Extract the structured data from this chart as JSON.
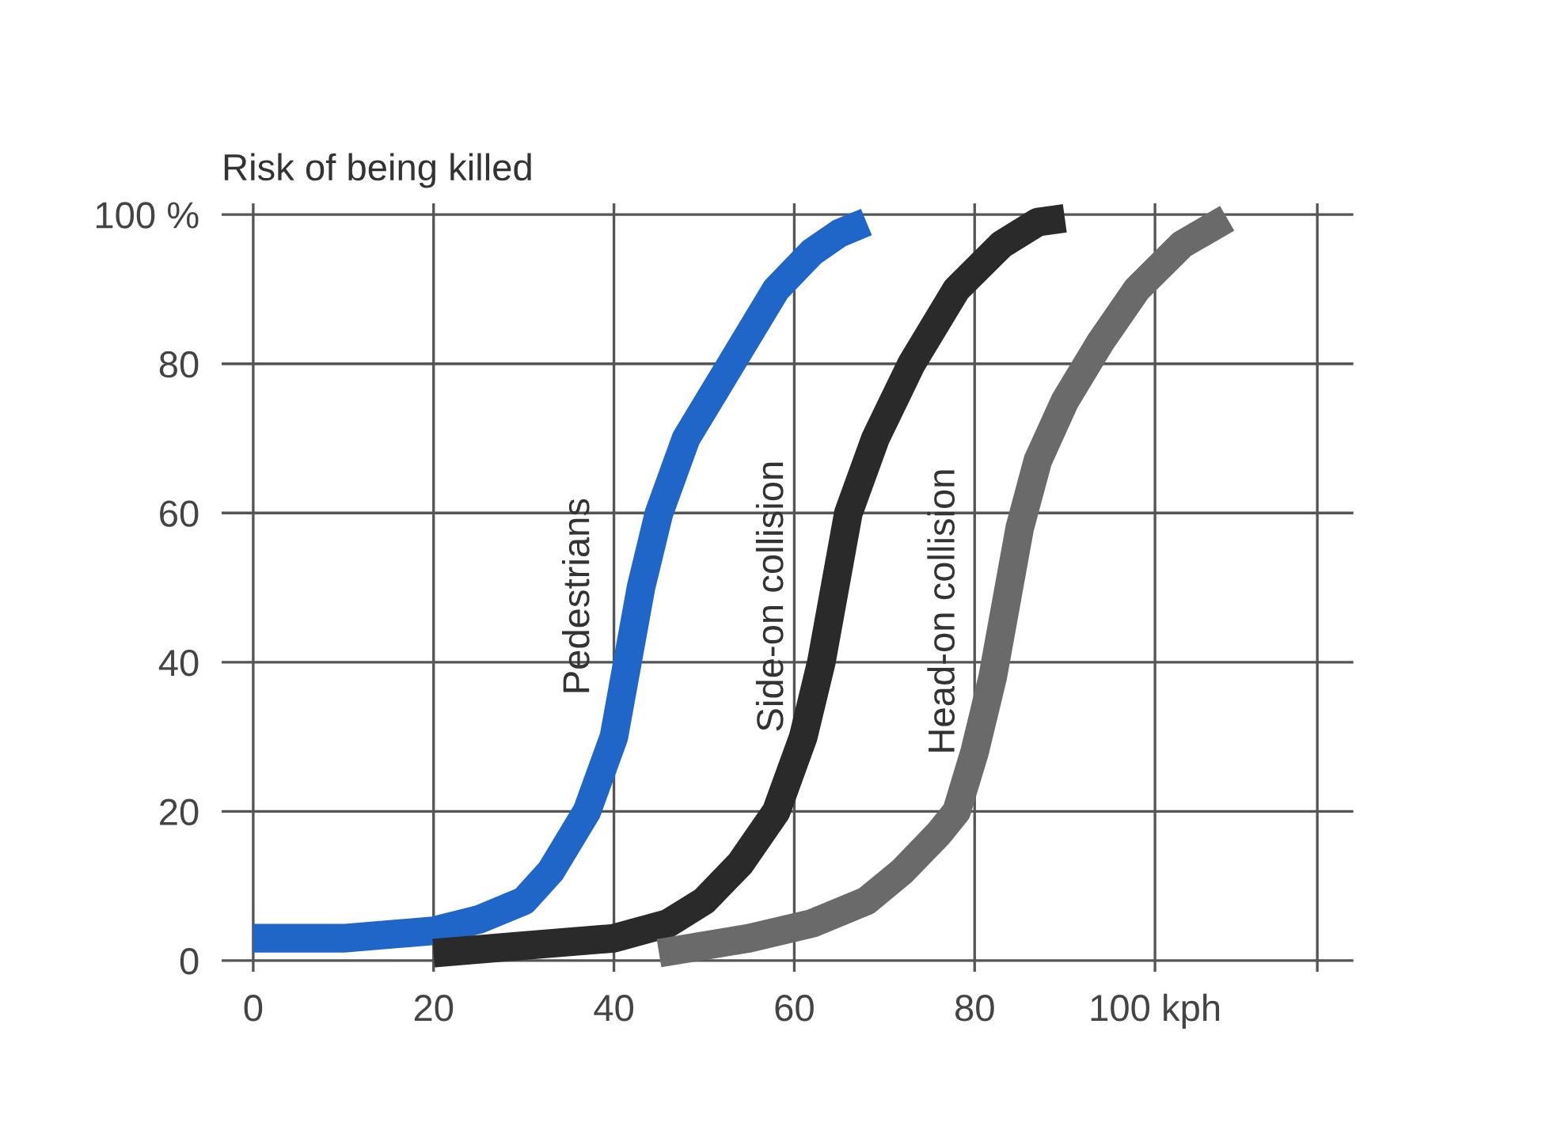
{
  "chart_data": {
    "type": "line",
    "ylabel": "Risk of being killed",
    "legend": false,
    "grid": true,
    "xlim": [
      -3.5,
      122
    ],
    "ylim": [
      -1.5,
      101.5
    ],
    "xticks": [
      0,
      20,
      40,
      60,
      80,
      {
        "value": 100,
        "label": "100 kph"
      },
      {
        "value": 118,
        "label": null
      }
    ],
    "yticks": [
      0,
      20,
      40,
      60,
      80,
      {
        "value": 100,
        "label": "100 %"
      }
    ],
    "series": [
      {
        "name": "Pedestrians",
        "color": "#1f66c8",
        "x": [
          0,
          10,
          20,
          25,
          30,
          33,
          37,
          40,
          41.5,
          43,
          45,
          48,
          53,
          58,
          62,
          65,
          68
        ],
        "values": [
          3,
          3,
          4,
          5.5,
          8,
          12,
          20,
          30,
          40,
          50,
          60,
          70,
          80,
          90,
          95,
          97.5,
          99
        ]
      },
      {
        "name": "Side-on collision",
        "color": "#2a2a2a",
        "x": [
          20,
          30,
          40,
          46,
          50,
          54,
          58,
          61,
          63,
          64.5,
          66,
          69,
          73,
          78,
          83,
          87,
          90
        ],
        "values": [
          1,
          2,
          3,
          5,
          8,
          13,
          20,
          30,
          40,
          50,
          60,
          70,
          80,
          90,
          96,
          99,
          99.5
        ]
      },
      {
        "name": "Head-on collision",
        "color": "#6a6a6a",
        "x": [
          45,
          55,
          62,
          68,
          72,
          76,
          78,
          80,
          82,
          83.5,
          85,
          87,
          90,
          94,
          98,
          103,
          108
        ],
        "values": [
          1,
          3,
          5,
          8,
          12,
          17,
          20,
          28,
          38,
          48,
          58,
          67,
          75,
          83,
          90,
          96,
          99.5
        ]
      }
    ]
  }
}
